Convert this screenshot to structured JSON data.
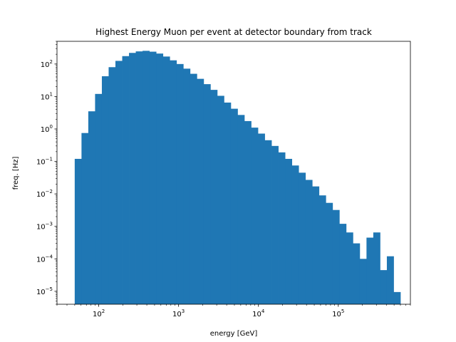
{
  "chart_data": {
    "type": "bar",
    "title": "Highest Energy Muon per event at detector boundary from track",
    "xlabel": "energy [GeV]",
    "ylabel": "freq. [Hz]",
    "x_scale": "log",
    "y_scale": "log",
    "xlim": [
      30,
      800000
    ],
    "ylim": [
      4e-06,
      500
    ],
    "x_ticks": [
      {
        "base": "10",
        "exp": "2",
        "value": 100
      },
      {
        "base": "10",
        "exp": "3",
        "value": 1000
      },
      {
        "base": "10",
        "exp": "4",
        "value": 10000
      },
      {
        "base": "10",
        "exp": "5",
        "value": 100000
      }
    ],
    "y_ticks": [
      {
        "base": "10",
        "exp": "2",
        "value": 100
      },
      {
        "base": "10",
        "exp": "1",
        "value": 10
      },
      {
        "base": "10",
        "exp": "0",
        "value": 1
      },
      {
        "base": "10",
        "exp": "−1",
        "value": 0.1
      },
      {
        "base": "10",
        "exp": "−2",
        "value": 0.01
      },
      {
        "base": "10",
        "exp": "−3",
        "value": 0.001
      },
      {
        "base": "10",
        "exp": "−4",
        "value": 0.0001
      },
      {
        "base": "10",
        "exp": "−5",
        "value": 1e-05
      }
    ],
    "bin_edge_first": 50,
    "bin_edge_last": 600000,
    "values": [
      0.12,
      0.75,
      3.5,
      12,
      42,
      80,
      125,
      175,
      220,
      245,
      255,
      240,
      210,
      170,
      130,
      100,
      72,
      50,
      35,
      24,
      16,
      10.5,
      6.5,
      4.2,
      2.7,
      1.75,
      1.1,
      0.72,
      0.45,
      0.3,
      0.19,
      0.12,
      0.075,
      0.045,
      0.027,
      0.017,
      0.009,
      0.0053,
      0.0032,
      0.0012,
      0.00065,
      0.0003,
      0.0001,
      0.00045,
      0.00065,
      4.5e-05,
      0.00012,
      9.5e-06
    ],
    "color": "#1f77b4",
    "grid": false,
    "legend": "none"
  }
}
